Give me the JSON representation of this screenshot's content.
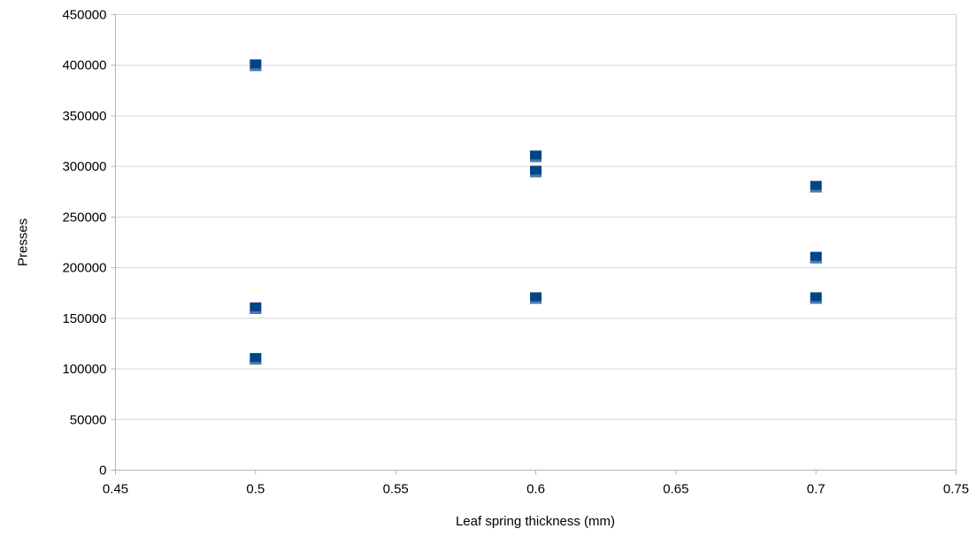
{
  "chart_data": {
    "type": "scatter",
    "title": "",
    "xlabel": "Leaf spring thickness (mm)",
    "ylabel": "Presses",
    "xlim": [
      0.45,
      0.75
    ],
    "ylim": [
      0,
      450000
    ],
    "x_ticks": [
      {
        "v": 0.45,
        "label": "0.45"
      },
      {
        "v": 0.5,
        "label": "0.5"
      },
      {
        "v": 0.55,
        "label": "0.55"
      },
      {
        "v": 0.6,
        "label": "0.6"
      },
      {
        "v": 0.65,
        "label": "0.65"
      },
      {
        "v": 0.7,
        "label": "0.7"
      },
      {
        "v": 0.75,
        "label": "0.75"
      }
    ],
    "y_ticks": [
      {
        "v": 0,
        "label": "0"
      },
      {
        "v": 50000,
        "label": "50000"
      },
      {
        "v": 100000,
        "label": "100000"
      },
      {
        "v": 150000,
        "label": "150000"
      },
      {
        "v": 200000,
        "label": "200000"
      },
      {
        "v": 250000,
        "label": "250000"
      },
      {
        "v": 300000,
        "label": "300000"
      },
      {
        "v": 350000,
        "label": "350000"
      },
      {
        "v": 400000,
        "label": "400000"
      },
      {
        "v": 450000,
        "label": "450000"
      }
    ],
    "grid": "horizontal",
    "legend": "none",
    "series": [
      {
        "name": "Presses",
        "marker": {
          "shape": "square",
          "size": 13,
          "color": "#004586",
          "edge_bottom_color": "#4d79a9"
        },
        "points": [
          {
            "x": 0.5,
            "y": 400000
          },
          {
            "x": 0.5,
            "y": 160000
          },
          {
            "x": 0.5,
            "y": 110000
          },
          {
            "x": 0.6,
            "y": 310000
          },
          {
            "x": 0.6,
            "y": 295000
          },
          {
            "x": 0.6,
            "y": 170000
          },
          {
            "x": 0.7,
            "y": 280000
          },
          {
            "x": 0.7,
            "y": 210000
          },
          {
            "x": 0.7,
            "y": 170000
          }
        ]
      }
    ],
    "colors": {
      "background": "#ffffff",
      "gridline": "#d6d6d6",
      "plot_border": "#c8c8c8",
      "axis": "#b3b3b3",
      "text": "#000000"
    }
  }
}
